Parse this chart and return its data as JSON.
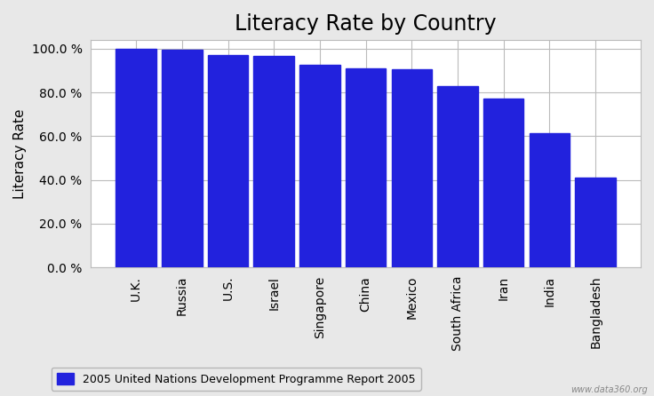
{
  "title": "Literacy Rate by Country",
  "ylabel": "Literacy Rate",
  "categories": [
    "U.K.",
    "Russia",
    "U.S.",
    "Israel",
    "Singapore",
    "China",
    "Mexico",
    "South Africa",
    "Iran",
    "India",
    "Bangladesh"
  ],
  "values": [
    99.9,
    99.6,
    97.0,
    96.9,
    92.5,
    90.9,
    90.5,
    82.9,
    77.1,
    61.3,
    41.1
  ],
  "bar_color": "#2222DD",
  "background_color": "#e8e8e8",
  "plot_bg_color": "#ffffff",
  "ylim": [
    0,
    104
  ],
  "yticks": [
    0,
    20,
    40,
    60,
    80,
    100
  ],
  "ytick_labels": [
    "0.0 %",
    "20.0 %",
    "40.0 %",
    "60.0 %",
    "80.0 %",
    "100.0 %"
  ],
  "legend_label": "2005 United Nations Development Programme Report 2005",
  "title_fontsize": 17,
  "ylabel_fontsize": 11,
  "tick_fontsize": 10,
  "watermark": "www.data360.org",
  "bar_width": 0.88
}
